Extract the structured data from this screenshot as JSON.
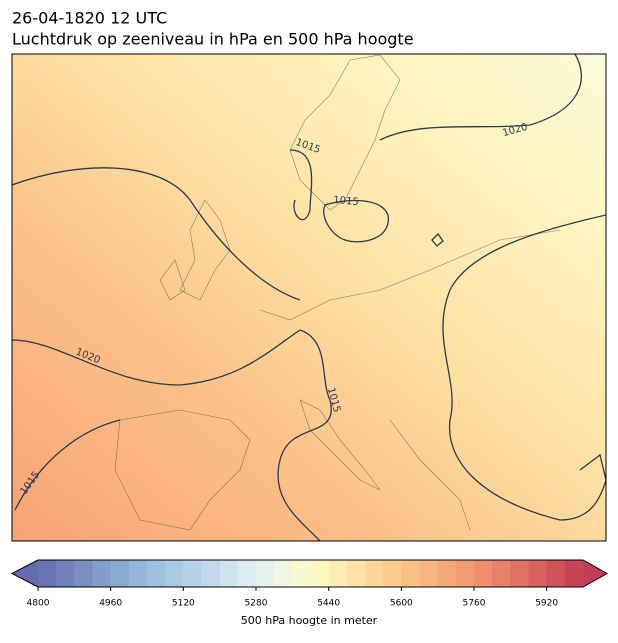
{
  "header": {
    "time": "26-04-1820 12 UTC",
    "title": "Luchtdruk op zeeniveau in hPa en 500 hPa hoogte"
  },
  "isobar_labels": [
    1020,
    1015,
    1015,
    1020,
    1015,
    1015
  ],
  "colorbar": {
    "lim": [
      4800,
      6000
    ],
    "ticks": [
      4800,
      4960,
      5120,
      5280,
      5440,
      5600,
      5760,
      5920
    ],
    "label": "500 hPa hoogte in meter"
  }
}
